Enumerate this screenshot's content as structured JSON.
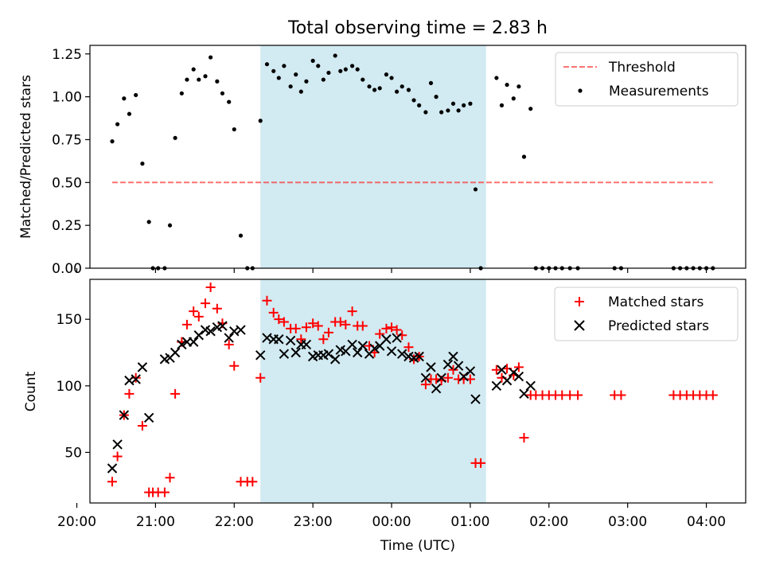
{
  "figure": {
    "title": "Total observing time = 2.83 h",
    "xlabel": "Time (UTC)"
  },
  "colors": {
    "shade": "#add8e6",
    "threshold": "#ff0000",
    "measurements": "#000000",
    "matched": "#ff0000",
    "predicted": "#000000"
  },
  "chart_data": [
    {
      "type": "scatter",
      "ylabel": "Matched/Predicted stars",
      "ylim": [
        0,
        1.3
      ],
      "yticks": [
        0.0,
        0.25,
        0.5,
        0.75,
        1.0,
        1.25
      ],
      "ytick_labels": [
        "0.00",
        "0.25",
        "0.50",
        "0.75",
        "1.00",
        "1.25"
      ],
      "xlim": [
        "20:10",
        "04:30"
      ],
      "xticks": [
        "20:00",
        "21:00",
        "22:00",
        "23:00",
        "00:00",
        "01:00",
        "02:00",
        "03:00",
        "04:00"
      ],
      "grid": false,
      "legend": "top-right",
      "shaded_interval": [
        "22:20",
        "01:12"
      ],
      "threshold": {
        "name": "Threshold",
        "y": 0.5,
        "x_from": "20:27",
        "x_to": "04:05",
        "style": "dashed"
      },
      "series": [
        {
          "name": "Measurements",
          "marker": "dot",
          "points": [
            [
              "20:27",
              0.74
            ],
            [
              "20:31",
              0.84
            ],
            [
              "20:36",
              0.99
            ],
            [
              "20:40",
              0.9
            ],
            [
              "20:45",
              1.01
            ],
            [
              "20:50",
              0.61
            ],
            [
              "20:55",
              0.27
            ],
            [
              "20:58",
              0.0
            ],
            [
              "21:02",
              0.0
            ],
            [
              "21:07",
              0.0
            ],
            [
              "21:11",
              0.25
            ],
            [
              "21:15",
              0.76
            ],
            [
              "21:20",
              1.02
            ],
            [
              "21:24",
              1.1
            ],
            [
              "21:29",
              1.16
            ],
            [
              "21:33",
              1.1
            ],
            [
              "21:38",
              1.12
            ],
            [
              "21:42",
              1.23
            ],
            [
              "21:47",
              1.09
            ],
            [
              "21:51",
              1.02
            ],
            [
              "21:56",
              0.97
            ],
            [
              "22:00",
              0.81
            ],
            [
              "22:05",
              0.19
            ],
            [
              "22:10",
              0.0
            ],
            [
              "22:14",
              0.0
            ],
            [
              "22:20",
              0.86
            ],
            [
              "22:25",
              1.19
            ],
            [
              "22:30",
              1.15
            ],
            [
              "22:34",
              1.11
            ],
            [
              "22:38",
              1.18
            ],
            [
              "22:43",
              1.06
            ],
            [
              "22:47",
              1.13
            ],
            [
              "22:51",
              1.03
            ],
            [
              "22:55",
              1.09
            ],
            [
              "23:00",
              1.21
            ],
            [
              "23:04",
              1.18
            ],
            [
              "23:08",
              1.1
            ],
            [
              "23:12",
              1.14
            ],
            [
              "23:17",
              1.24
            ],
            [
              "23:21",
              1.15
            ],
            [
              "23:25",
              1.16
            ],
            [
              "23:30",
              1.18
            ],
            [
              "23:34",
              1.16
            ],
            [
              "23:38",
              1.1
            ],
            [
              "23:43",
              1.06
            ],
            [
              "23:47",
              1.04
            ],
            [
              "23:51",
              1.05
            ],
            [
              "23:56",
              1.13
            ],
            [
              "24:00",
              1.11
            ],
            [
              "24:04",
              1.03
            ],
            [
              "24:08",
              1.06
            ],
            [
              "24:13",
              1.04
            ],
            [
              "24:17",
              0.98
            ],
            [
              "24:21",
              0.95
            ],
            [
              "24:26",
              0.91
            ],
            [
              "24:30",
              1.08
            ],
            [
              "24:34",
              1.0
            ],
            [
              "24:38",
              0.91
            ],
            [
              "24:43",
              0.92
            ],
            [
              "24:47",
              0.96
            ],
            [
              "24:51",
              0.92
            ],
            [
              "24:55",
              0.95
            ],
            [
              "25:00",
              0.96
            ],
            [
              "25:04",
              0.46
            ],
            [
              "25:08",
              0.0
            ],
            [
              "25:20",
              1.11
            ],
            [
              "25:24",
              0.95
            ],
            [
              "25:28",
              1.07
            ],
            [
              "25:33",
              0.99
            ],
            [
              "25:37",
              1.06
            ],
            [
              "25:41",
              0.65
            ],
            [
              "25:46",
              0.93
            ],
            [
              "25:50",
              0.0
            ],
            [
              "25:55",
              0.0
            ],
            [
              "26:00",
              0.0
            ],
            [
              "26:05",
              0.0
            ],
            [
              "26:10",
              0.0
            ],
            [
              "26:16",
              0.0
            ],
            [
              "26:22",
              0.0
            ],
            [
              "26:50",
              0.0
            ],
            [
              "26:55",
              0.0
            ],
            [
              "27:35",
              0.0
            ],
            [
              "27:40",
              0.0
            ],
            [
              "27:45",
              0.0
            ],
            [
              "27:50",
              0.0
            ],
            [
              "27:55",
              0.0
            ],
            [
              "28:00",
              0.0
            ],
            [
              "28:05",
              0.0
            ]
          ]
        }
      ]
    },
    {
      "type": "scatter",
      "ylabel": "Count",
      "ylim": [
        12,
        180
      ],
      "yticks": [
        50,
        100,
        150
      ],
      "ytick_labels": [
        "50",
        "100",
        "150"
      ],
      "xlim": [
        "20:10",
        "04:30"
      ],
      "xticks": [
        "20:00",
        "21:00",
        "22:00",
        "23:00",
        "00:00",
        "01:00",
        "02:00",
        "03:00",
        "04:00"
      ],
      "xtick_labels": [
        "20:00",
        "21:00",
        "22:00",
        "23:00",
        "00:00",
        "01:00",
        "02:00",
        "03:00",
        "04:00"
      ],
      "grid": false,
      "legend": "top-right",
      "shaded_interval": [
        "22:20",
        "01:12"
      ],
      "series": [
        {
          "name": "Matched stars",
          "marker": "plus",
          "points": [
            [
              "20:27",
              28
            ],
            [
              "20:31",
              47
            ],
            [
              "20:36",
              78
            ],
            [
              "20:40",
              94
            ],
            [
              "20:45",
              106
            ],
            [
              "20:50",
              70
            ],
            [
              "20:55",
              20
            ],
            [
              "20:58",
              20
            ],
            [
              "21:02",
              20
            ],
            [
              "21:07",
              20
            ],
            [
              "21:11",
              31
            ],
            [
              "21:15",
              94
            ],
            [
              "21:20",
              133
            ],
            [
              "21:24",
              146
            ],
            [
              "21:29",
              156
            ],
            [
              "21:33",
              152
            ],
            [
              "21:38",
              162
            ],
            [
              "21:42",
              174
            ],
            [
              "21:47",
              158
            ],
            [
              "21:51",
              147
            ],
            [
              "21:56",
              131
            ],
            [
              "22:00",
              115
            ],
            [
              "22:05",
              28
            ],
            [
              "22:10",
              28
            ],
            [
              "22:14",
              28
            ],
            [
              "22:20",
              106
            ],
            [
              "22:25",
              164
            ],
            [
              "22:30",
              155
            ],
            [
              "22:34",
              150
            ],
            [
              "22:38",
              148
            ],
            [
              "22:43",
              143
            ],
            [
              "22:47",
              143
            ],
            [
              "22:51",
              135
            ],
            [
              "22:55",
              144
            ],
            [
              "23:00",
              147
            ],
            [
              "23:04",
              145
            ],
            [
              "23:08",
              135
            ],
            [
              "23:12",
              140
            ],
            [
              "23:17",
              148
            ],
            [
              "23:21",
              148
            ],
            [
              "23:25",
              146
            ],
            [
              "23:30",
              156
            ],
            [
              "23:34",
              145
            ],
            [
              "23:38",
              145
            ],
            [
              "23:43",
              130
            ],
            [
              "23:47",
              125
            ],
            [
              "23:51",
              139
            ],
            [
              "23:56",
              143
            ],
            [
              "24:00",
              144
            ],
            [
              "24:04",
              142
            ],
            [
              "24:08",
              138
            ],
            [
              "24:13",
              129
            ],
            [
              "24:17",
              120
            ],
            [
              "24:21",
              122
            ],
            [
              "24:26",
              101
            ],
            [
              "24:30",
              105
            ],
            [
              "24:34",
              105
            ],
            [
              "24:38",
              104
            ],
            [
              "24:43",
              106
            ],
            [
              "24:47",
              112
            ],
            [
              "24:51",
              105
            ],
            [
              "24:55",
              105
            ],
            [
              "25:00",
              105
            ],
            [
              "25:04",
              42
            ],
            [
              "25:08",
              42
            ],
            [
              "25:20",
              112
            ],
            [
              "25:24",
              106
            ],
            [
              "25:28",
              113
            ],
            [
              "25:33",
              108
            ],
            [
              "25:37",
              114
            ],
            [
              "25:41",
              61
            ],
            [
              "25:46",
              93
            ],
            [
              "25:50",
              93
            ],
            [
              "25:55",
              93
            ],
            [
              "26:00",
              93
            ],
            [
              "26:05",
              93
            ],
            [
              "26:10",
              93
            ],
            [
              "26:16",
              93
            ],
            [
              "26:22",
              93
            ],
            [
              "26:50",
              93
            ],
            [
              "26:55",
              93
            ],
            [
              "27:35",
              93
            ],
            [
              "27:40",
              93
            ],
            [
              "27:45",
              93
            ],
            [
              "27:50",
              93
            ],
            [
              "27:55",
              93
            ],
            [
              "28:00",
              93
            ],
            [
              "28:05",
              93
            ]
          ]
        },
        {
          "name": "Predicted stars",
          "marker": "x",
          "points": [
            [
              "20:27",
              38
            ],
            [
              "20:31",
              56
            ],
            [
              "20:36",
              78
            ],
            [
              "20:40",
              104
            ],
            [
              "20:45",
              105
            ],
            [
              "20:50",
              114
            ],
            [
              "20:55",
              76
            ],
            [
              "21:07",
              120
            ],
            [
              "21:11",
              121
            ],
            [
              "21:15",
              125
            ],
            [
              "21:20",
              131
            ],
            [
              "21:24",
              133
            ],
            [
              "21:29",
              133
            ],
            [
              "21:33",
              138
            ],
            [
              "21:38",
              142
            ],
            [
              "21:42",
              141
            ],
            [
              "21:47",
              144
            ],
            [
              "21:51",
              145
            ],
            [
              "21:56",
              136
            ],
            [
              "22:00",
              141
            ],
            [
              "22:05",
              142
            ],
            [
              "22:20",
              123
            ],
            [
              "22:25",
              136
            ],
            [
              "22:30",
              135
            ],
            [
              "22:34",
              135
            ],
            [
              "22:38",
              124
            ],
            [
              "22:43",
              134
            ],
            [
              "22:47",
              125
            ],
            [
              "22:51",
              131
            ],
            [
              "22:55",
              131
            ],
            [
              "23:00",
              122
            ],
            [
              "23:04",
              123
            ],
            [
              "23:08",
              123
            ],
            [
              "23:12",
              124
            ],
            [
              "23:17",
              120
            ],
            [
              "23:21",
              127
            ],
            [
              "23:25",
              126
            ],
            [
              "23:30",
              131
            ],
            [
              "23:34",
              125
            ],
            [
              "23:38",
              130
            ],
            [
              "23:43",
              124
            ],
            [
              "23:47",
              128
            ],
            [
              "23:51",
              130
            ],
            [
              "23:56",
              135
            ],
            [
              "24:00",
              126
            ],
            [
              "24:04",
              136
            ],
            [
              "24:08",
              124
            ],
            [
              "24:13",
              122
            ],
            [
              "24:17",
              121
            ],
            [
              "24:21",
              122
            ],
            [
              "24:26",
              106
            ],
            [
              "24:30",
              114
            ],
            [
              "24:34",
              98
            ],
            [
              "24:38",
              106
            ],
            [
              "24:43",
              116
            ],
            [
              "24:47",
              122
            ],
            [
              "24:51",
              115
            ],
            [
              "24:55",
              107
            ],
            [
              "25:00",
              111
            ],
            [
              "25:04",
              90
            ],
            [
              "25:20",
              100
            ],
            [
              "25:24",
              112
            ],
            [
              "25:28",
              104
            ],
            [
              "25:33",
              110
            ],
            [
              "25:37",
              107
            ],
            [
              "25:41",
              94
            ],
            [
              "25:46",
              100
            ]
          ]
        }
      ]
    }
  ]
}
